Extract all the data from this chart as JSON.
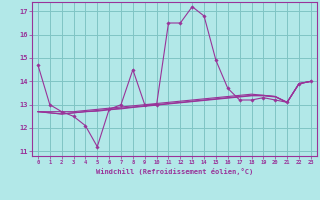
{
  "xlabel": "Windchill (Refroidissement éolien,°C)",
  "xlim": [
    -0.5,
    23.5
  ],
  "ylim": [
    10.8,
    17.4
  ],
  "yticks": [
    11,
    12,
    13,
    14,
    15,
    16,
    17
  ],
  "xticks": [
    0,
    1,
    2,
    3,
    4,
    5,
    6,
    7,
    8,
    9,
    10,
    11,
    12,
    13,
    14,
    15,
    16,
    17,
    18,
    19,
    20,
    21,
    22,
    23
  ],
  "bg_color": "#b2e8e8",
  "grid_color": "#80c4c4",
  "line_color": "#993399",
  "main_line": [
    14.7,
    13.0,
    12.7,
    12.5,
    12.1,
    11.2,
    12.8,
    13.0,
    14.5,
    13.0,
    13.0,
    16.5,
    16.5,
    17.2,
    16.8,
    14.9,
    13.7,
    13.2,
    13.2,
    13.3,
    13.2,
    13.1,
    13.9,
    14.0
  ],
  "flat_lines": [
    [
      12.7,
      12.7,
      12.7,
      12.7,
      12.75,
      12.8,
      12.85,
      12.9,
      12.95,
      13.0,
      13.05,
      13.1,
      13.15,
      13.2,
      13.25,
      13.3,
      13.35,
      13.4,
      13.45,
      13.4,
      13.35,
      13.1,
      13.9,
      14.0
    ],
    [
      12.7,
      12.65,
      12.6,
      12.65,
      12.7,
      12.75,
      12.8,
      12.85,
      12.9,
      12.95,
      13.0,
      13.05,
      13.1,
      13.15,
      13.2,
      13.25,
      13.3,
      13.35,
      13.4,
      13.4,
      13.35,
      13.1,
      13.9,
      14.0
    ],
    [
      12.7,
      12.65,
      12.6,
      12.65,
      12.7,
      12.72,
      12.78,
      12.82,
      12.88,
      12.93,
      12.98,
      13.03,
      13.08,
      13.13,
      13.18,
      13.23,
      13.28,
      13.33,
      13.38,
      13.38,
      13.33,
      13.1,
      13.9,
      14.0
    ]
  ]
}
